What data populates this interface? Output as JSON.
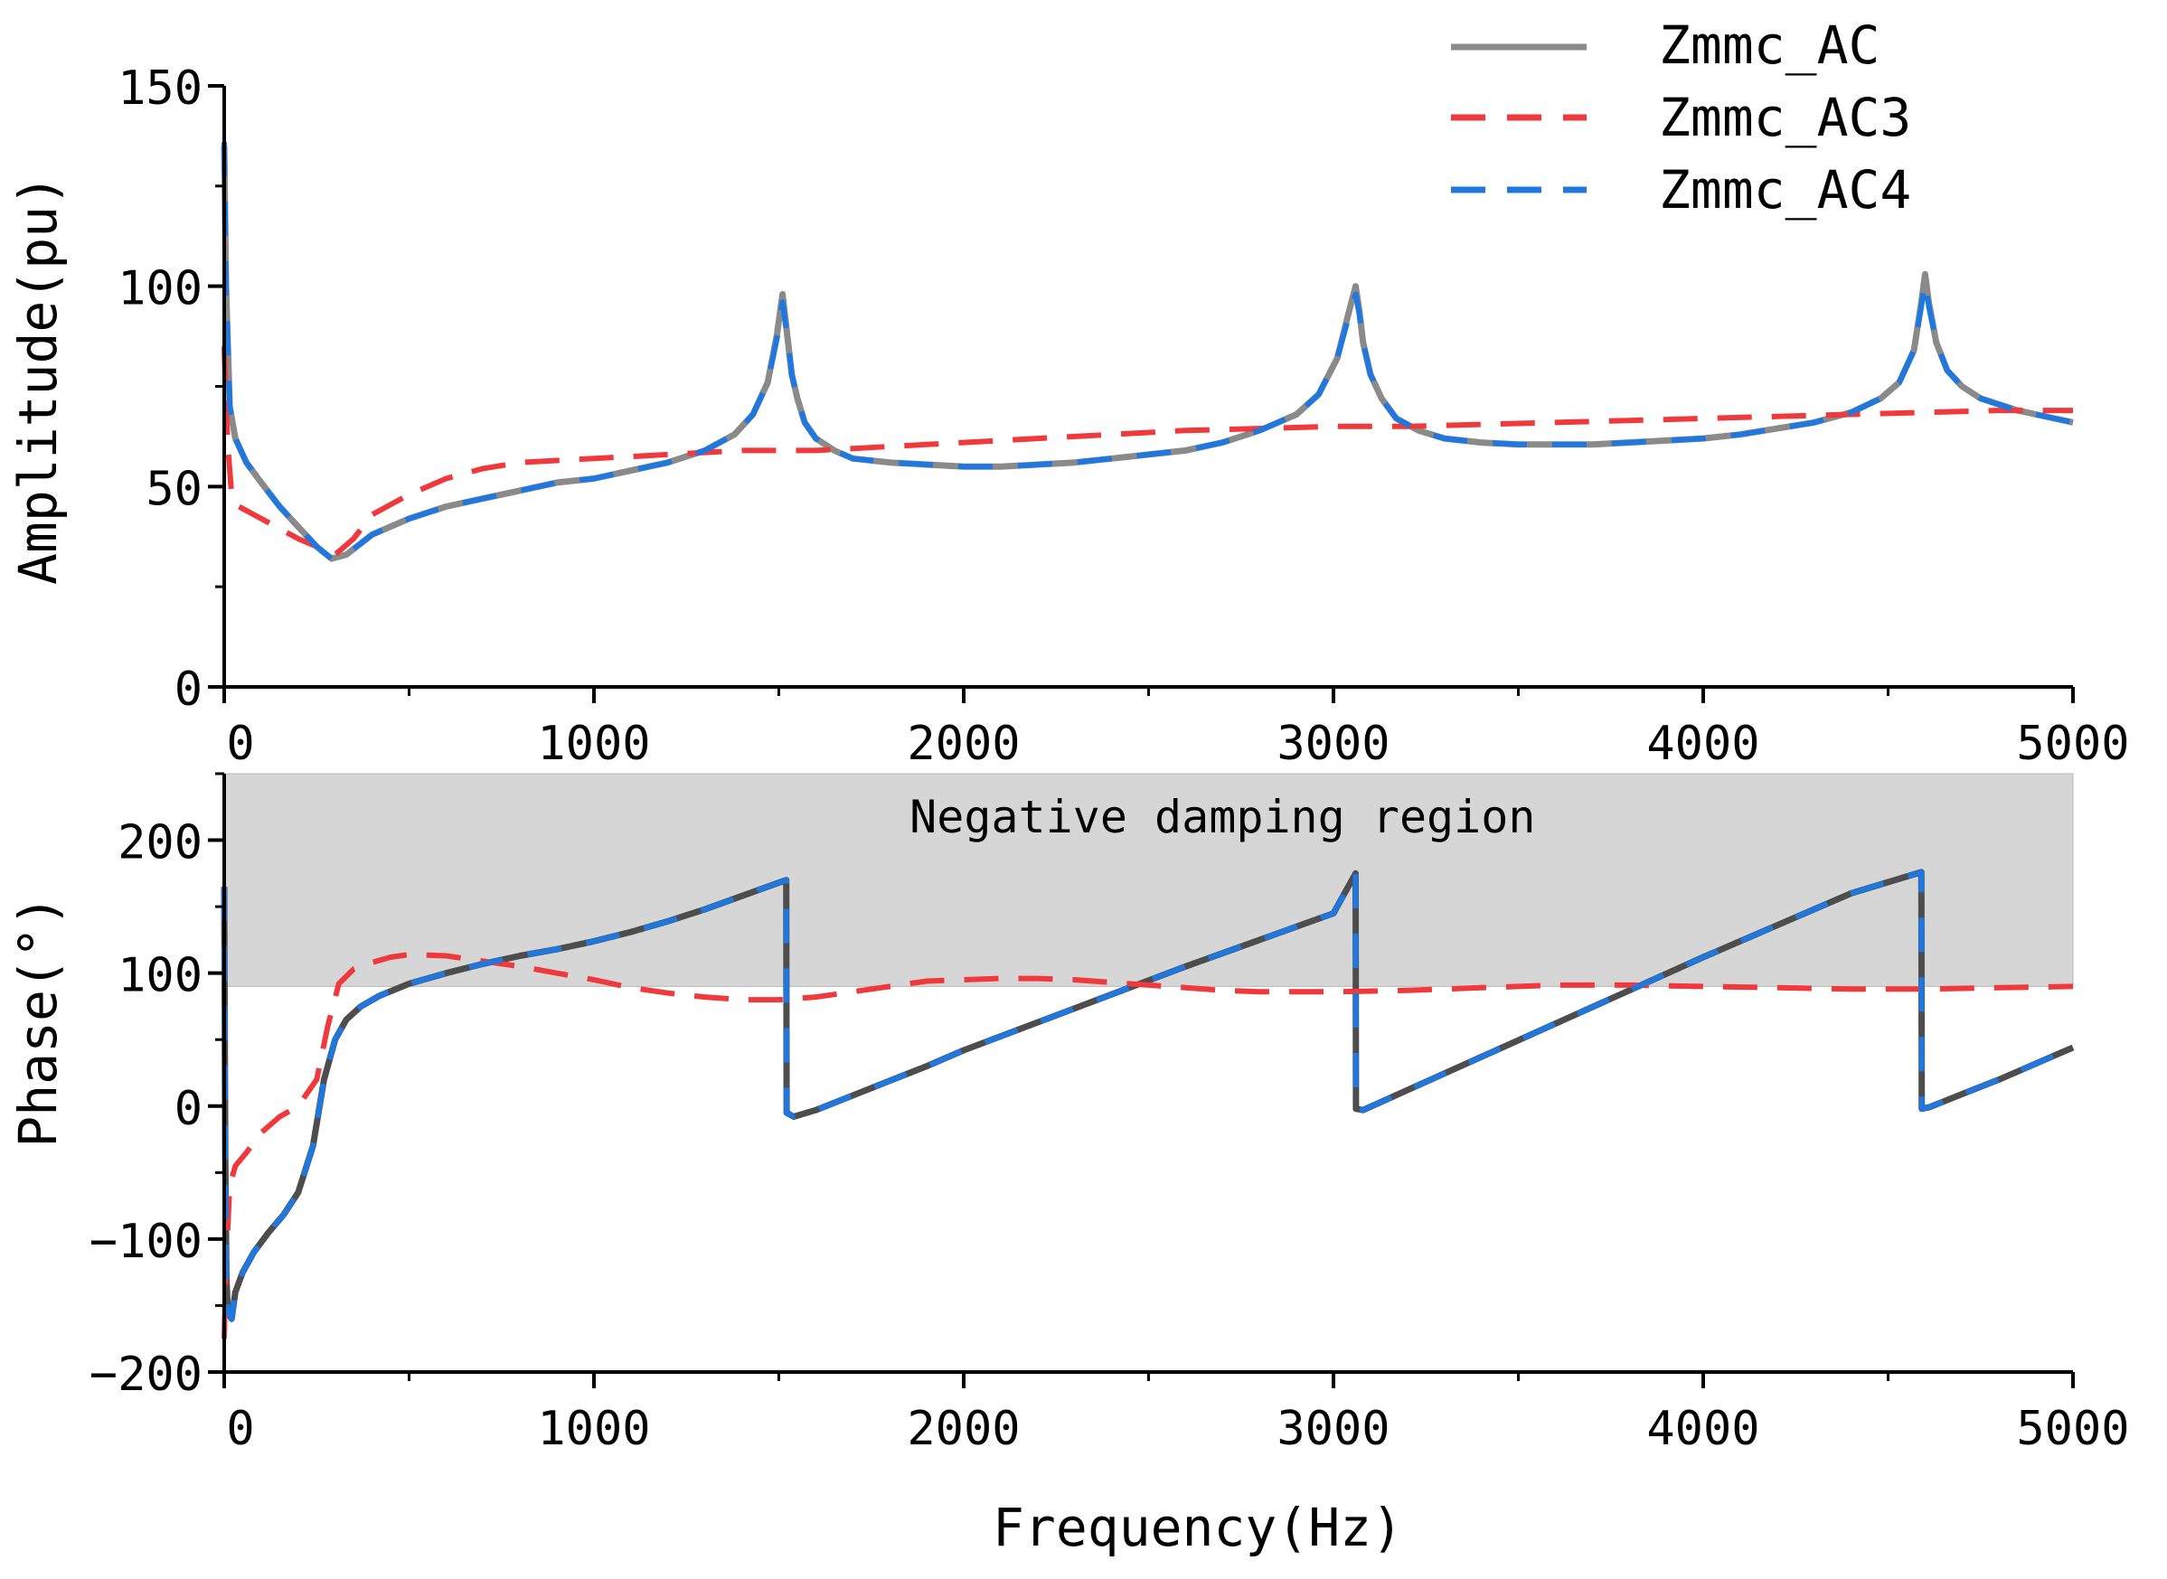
{
  "legend": {
    "entries": [
      {
        "label": "Zmmc_AC",
        "color": "#8a8a8a",
        "dash": "solid"
      },
      {
        "label": "Zmmc_AC3",
        "color": "#f0393c",
        "dash": "dashed"
      },
      {
        "label": "Zmmc_AC4",
        "color": "#1f77e0",
        "dash": "dashed"
      }
    ],
    "placement": "top-right"
  },
  "region": {
    "label": "Negative damping region",
    "y_from": 90,
    "y_to": 250,
    "color": "#d6d6d6"
  },
  "chart_data": [
    {
      "type": "line",
      "title": "",
      "xlabel": "",
      "ylabel": "Amplitude(pu)",
      "xlim": [
        0,
        5000
      ],
      "ylim": [
        0,
        150
      ],
      "xticks": [
        0,
        1000,
        2000,
        3000,
        4000,
        5000
      ],
      "yticks": [
        0,
        50,
        100,
        150
      ],
      "series": [
        {
          "name": "Zmmc_AC",
          "color": "#8a8a8a",
          "x": [
            0,
            5,
            15,
            30,
            60,
            100,
            150,
            200,
            250,
            290,
            330,
            400,
            500,
            600,
            700,
            800,
            900,
            1000,
            1100,
            1200,
            1300,
            1380,
            1430,
            1470,
            1495,
            1510,
            1525,
            1535,
            1550,
            1570,
            1600,
            1650,
            1700,
            1800,
            1900,
            2000,
            2100,
            2200,
            2300,
            2400,
            2500,
            2600,
            2700,
            2800,
            2900,
            2960,
            3010,
            3040,
            3060,
            3070,
            3080,
            3100,
            3130,
            3170,
            3230,
            3300,
            3400,
            3500,
            3600,
            3700,
            3800,
            3900,
            4000,
            4100,
            4200,
            4300,
            4400,
            4480,
            4530,
            4570,
            4590,
            4600,
            4610,
            4630,
            4660,
            4700,
            4750,
            4800,
            4850,
            4900,
            4950,
            5000
          ],
          "values": [
            135,
            100,
            70,
            62,
            56,
            51,
            45,
            40,
            35,
            32,
            33,
            38,
            42,
            45,
            47,
            49,
            51,
            52,
            54,
            56,
            59,
            63,
            68,
            76,
            88,
            98,
            86,
            78,
            72,
            66,
            62,
            59,
            57,
            56,
            55.5,
            55,
            55,
            55.5,
            56,
            57,
            58,
            59,
            61,
            64,
            68,
            73,
            82,
            93,
            100,
            94,
            86,
            78,
            72,
            67,
            64,
            62,
            61,
            60.5,
            60.5,
            60.5,
            61,
            61.5,
            62,
            63,
            64.5,
            66,
            68.5,
            72,
            76,
            84,
            96,
            103,
            96,
            86,
            79,
            75,
            72,
            70.5,
            69,
            68,
            67,
            66
          ]
        },
        {
          "name": "Zmmc_AC3",
          "color": "#f0393c",
          "x": [
            0,
            5,
            10,
            20,
            40,
            80,
            120,
            160,
            200,
            250,
            300,
            350,
            400,
            500,
            600,
            700,
            800,
            900,
            1000,
            1100,
            1200,
            1300,
            1400,
            1500,
            1600,
            1700,
            1800,
            1900,
            2000,
            2200,
            2400,
            2600,
            2800,
            3000,
            3200,
            3400,
            3600,
            3800,
            4000,
            4200,
            4400,
            4600,
            4800,
            5000
          ],
          "values": [
            85,
            70,
            60,
            48,
            45,
            43,
            41,
            39,
            37,
            35,
            33,
            37,
            43,
            48,
            52,
            54.5,
            56,
            56.5,
            57,
            57.5,
            58,
            58.5,
            59,
            59,
            59,
            59.5,
            60,
            60.5,
            61,
            62,
            63,
            64,
            64.5,
            65,
            65,
            65.5,
            66,
            66.5,
            67,
            67.5,
            68,
            68.5,
            69,
            69
          ]
        },
        {
          "name": "Zmmc_AC4",
          "color": "#1f77e0",
          "x": [
            0,
            5,
            15,
            30,
            60,
            100,
            150,
            200,
            250,
            290,
            330,
            400,
            500,
            600,
            700,
            800,
            900,
            1000,
            1100,
            1200,
            1300,
            1380,
            1430,
            1470,
            1495,
            1510,
            1525,
            1535,
            1550,
            1570,
            1600,
            1650,
            1700,
            1800,
            1900,
            2000,
            2100,
            2200,
            2300,
            2400,
            2500,
            2600,
            2700,
            2800,
            2900,
            2960,
            3010,
            3040,
            3060,
            3070,
            3080,
            3100,
            3130,
            3170,
            3230,
            3300,
            3400,
            3500,
            3600,
            3700,
            3800,
            3900,
            4000,
            4100,
            4200,
            4300,
            4400,
            4480,
            4530,
            4570,
            4590,
            4600,
            4610,
            4630,
            4660,
            4700,
            4750,
            4800,
            4850,
            4900,
            4950,
            5000
          ],
          "values": [
            136,
            100,
            70,
            62,
            56,
            51,
            45,
            40,
            35,
            32,
            33,
            38,
            42,
            45,
            47,
            49,
            51,
            52,
            54,
            56,
            59,
            63,
            68,
            76,
            87,
            96,
            86,
            78,
            72,
            66,
            62,
            59,
            57,
            56,
            55.5,
            55,
            55,
            55.5,
            56,
            57,
            58,
            59,
            61,
            64,
            68,
            73,
            82,
            92,
            98,
            93,
            86,
            78,
            72,
            67,
            64,
            62,
            61,
            60.5,
            60.5,
            60.5,
            61,
            61.5,
            62,
            63,
            64.5,
            66,
            68.5,
            72,
            76,
            84,
            95,
            101,
            95,
            86,
            79,
            75,
            72,
            70.5,
            69,
            68,
            67,
            66
          ]
        }
      ]
    },
    {
      "type": "line",
      "title": "",
      "xlabel": "Frequency(Hz)",
      "ylabel": "Phase(°)",
      "xlim": [
        0,
        5000
      ],
      "ylim": [
        -200,
        250
      ],
      "xticks": [
        0,
        1000,
        2000,
        3000,
        4000,
        5000
      ],
      "yticks": [
        -200,
        -100,
        0,
        100,
        200
      ],
      "series": [
        {
          "name": "Zmmc_AC",
          "color": "#4d4d4d",
          "x": [
            0,
            3,
            6,
            10,
            20,
            30,
            50,
            80,
            120,
            160,
            200,
            240,
            270,
            300,
            330,
            370,
            420,
            500,
            600,
            700,
            800,
            900,
            1000,
            1100,
            1200,
            1300,
            1400,
            1500,
            1520,
            1521,
            1540,
            1600,
            1700,
            1800,
            1900,
            2000,
            2200,
            2400,
            2600,
            2800,
            3000,
            3060,
            3061,
            3080,
            3200,
            3400,
            3600,
            3800,
            4000,
            4200,
            4400,
            4590,
            4591,
            4610,
            4700,
            4800,
            4900,
            5000
          ],
          "values": [
            165,
            -40,
            -130,
            -155,
            -160,
            -140,
            -125,
            -110,
            -95,
            -82,
            -65,
            -30,
            20,
            50,
            65,
            75,
            83,
            92,
            100,
            107,
            113,
            118,
            124,
            131,
            139,
            148,
            158,
            168,
            170,
            -5,
            -8,
            -3,
            8,
            19,
            30,
            42,
            63,
            84,
            105,
            125,
            145,
            175,
            -2,
            -3,
            12,
            37,
            62,
            87,
            112,
            136,
            160,
            176,
            -2,
            -1,
            9,
            20,
            32,
            44
          ]
        },
        {
          "name": "Zmmc_AC3",
          "color": "#f0393c",
          "x": [
            0,
            5,
            15,
            30,
            60,
            100,
            150,
            200,
            250,
            280,
            310,
            350,
            400,
            450,
            500,
            600,
            700,
            800,
            900,
            1000,
            1100,
            1200,
            1300,
            1400,
            1500,
            1600,
            1700,
            1800,
            1900,
            2000,
            2100,
            2200,
            2300,
            2400,
            2500,
            2600,
            2700,
            2800,
            2900,
            3000,
            3200,
            3400,
            3600,
            3800,
            4000,
            4200,
            4400,
            4600,
            4800,
            5000
          ],
          "values": [
            -175,
            -120,
            -60,
            -45,
            -35,
            -20,
            -8,
            0,
            20,
            60,
            92,
            103,
            108,
            112,
            114,
            113,
            109,
            105,
            100,
            95,
            89,
            85,
            82,
            80,
            80,
            82,
            86,
            90,
            94,
            95,
            96,
            96,
            95,
            93,
            91,
            89,
            87,
            86,
            86,
            86,
            87,
            89,
            91,
            91,
            90,
            89,
            88,
            88,
            89,
            90
          ]
        },
        {
          "name": "Zmmc_AC4",
          "color": "#1f77e0",
          "x": [
            0,
            3,
            6,
            10,
            20,
            30,
            50,
            80,
            120,
            160,
            200,
            240,
            270,
            300,
            330,
            370,
            420,
            500,
            600,
            700,
            800,
            900,
            1000,
            1100,
            1200,
            1300,
            1400,
            1500,
            1520,
            1521,
            1540,
            1600,
            1700,
            1800,
            1900,
            2000,
            2200,
            2400,
            2600,
            2800,
            3000,
            3060,
            3061,
            3080,
            3200,
            3400,
            3600,
            3800,
            4000,
            4200,
            4400,
            4590,
            4591,
            4610,
            4700,
            4800,
            4900,
            5000
          ],
          "values": [
            165,
            -40,
            -130,
            -155,
            -160,
            -140,
            -125,
            -110,
            -95,
            -82,
            -65,
            -30,
            20,
            50,
            65,
            75,
            83,
            92,
            100,
            107,
            113,
            118,
            124,
            131,
            139,
            148,
            158,
            168,
            170,
            -5,
            -8,
            -3,
            8,
            19,
            30,
            42,
            63,
            84,
            105,
            125,
            145,
            175,
            -2,
            -3,
            12,
            37,
            62,
            87,
            112,
            136,
            160,
            176,
            -2,
            -1,
            9,
            20,
            32,
            44
          ]
        }
      ]
    }
  ]
}
